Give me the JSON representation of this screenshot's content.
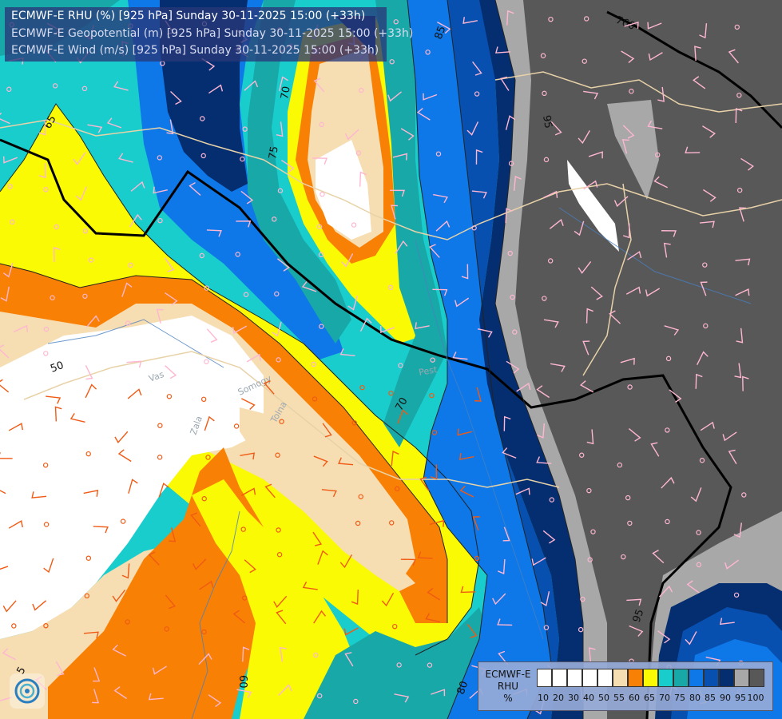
{
  "header": {
    "line1": "ECMWF-E RHU (%) [925 hPa] Sunday 30-11-2025 15:00 (+33h)",
    "line2": "ECMWF-E Geopotential (m) [925 hPa] Sunday 30-11-2025 15:00 (+33h)",
    "line3": "ECMWF-E Wind (m/s) [925 hPa] Sunday 30-11-2025 15:00 (+33h)"
  },
  "legend": {
    "title1": "ECMWF-E",
    "title2": "RHU",
    "title3": "%",
    "ticks": [
      "10",
      "20",
      "30",
      "40",
      "50",
      "55",
      "60",
      "65",
      "70",
      "75",
      "80",
      "85",
      "90",
      "95",
      "100"
    ],
    "colors": [
      "#ffffff",
      "#ffffff",
      "#ffffff",
      "#ffffff",
      "#ffffff",
      "#f6ddb2",
      "#f88004",
      "#fafa04",
      "#19cdcd",
      "#19a8a8",
      "#0e78e8",
      "#0850b0",
      "#052e70",
      "#a8a8a8",
      "#585858"
    ]
  },
  "contour_labels": {
    "geo_760": "760",
    "rh_85_top": "85",
    "rh_70_top": "70",
    "rh_75": "75",
    "rh_65": "65",
    "rh_95": "95",
    "rh_50": "50",
    "rh_70_mid": "70",
    "rh_60": "60",
    "rh_80": "80",
    "rh_95_bottom": "95",
    "rh_5": "5"
  },
  "places": {
    "vas": "Vas",
    "somogy": "Somogy",
    "tolna": "Tolna",
    "zala": "Zala",
    "pest": "Pest"
  },
  "colors": {
    "white": "#ffffff",
    "tan": "#f6ddb2",
    "orange": "#f88004",
    "yellow": "#fafa04",
    "cyan": "#19cdcd",
    "teal": "#19a8a8",
    "blue": "#0e78e8",
    "mid_blue": "#0850b0",
    "navy": "#052e70",
    "light_gray": "#a8a8a8",
    "dark_gray": "#585858"
  }
}
